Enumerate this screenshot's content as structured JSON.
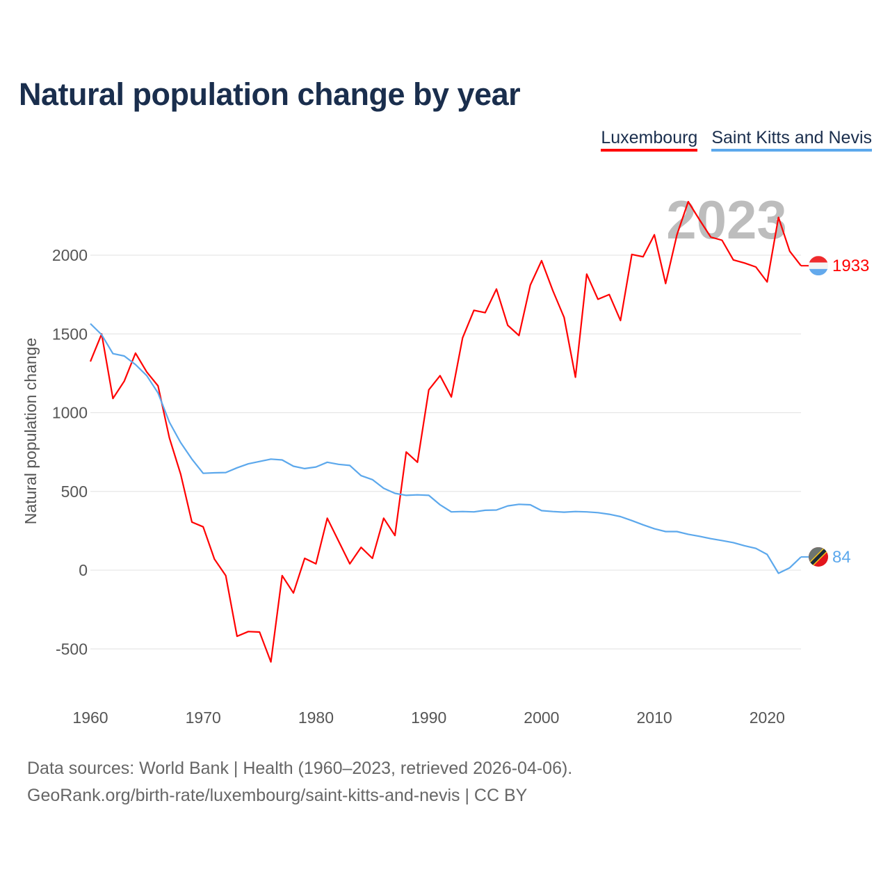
{
  "title": "Natural population change by year",
  "legend": [
    {
      "label": "Luxembourg",
      "color": "#ff0000"
    },
    {
      "label": "Saint Kitts and Nevis",
      "color": "#5ca8ec"
    }
  ],
  "footer": {
    "line1": "Data sources: World Bank | Health (1960–2023, retrieved 2026-04-06).",
    "line2": "GeoRank.org/birth-rate/luxembourg/saint-kitts-and-nevis | CC BY"
  },
  "chart_data": {
    "type": "line",
    "title": "Natural population change by year",
    "xlabel": "",
    "ylabel": "Natural population change",
    "year_label": "2023",
    "xlim": [
      1960,
      2023
    ],
    "ylim": [
      -750,
      2450
    ],
    "x_ticks": [
      1960,
      1970,
      1980,
      1990,
      2000,
      2010,
      2020
    ],
    "y_ticks": [
      -500,
      0,
      500,
      1000,
      1500,
      2000
    ],
    "grid": true,
    "legend_position": "top-right",
    "x": [
      1960,
      1961,
      1962,
      1963,
      1964,
      1965,
      1966,
      1967,
      1968,
      1969,
      1970,
      1971,
      1972,
      1973,
      1974,
      1975,
      1976,
      1977,
      1978,
      1979,
      1980,
      1981,
      1982,
      1983,
      1984,
      1985,
      1986,
      1987,
      1988,
      1989,
      1990,
      1991,
      1992,
      1993,
      1994,
      1995,
      1996,
      1997,
      1998,
      1999,
      2000,
      2001,
      2002,
      2003,
      2004,
      2005,
      2006,
      2007,
      2008,
      2009,
      2010,
      2011,
      2012,
      2013,
      2014,
      2015,
      2016,
      2017,
      2018,
      2019,
      2020,
      2021,
      2022,
      2023
    ],
    "series": [
      {
        "name": "Luxembourg",
        "color": "#ff0000",
        "end_label": "1933",
        "values": [
          1325,
          1500,
          1090,
          1200,
          1378,
          1258,
          1170,
          840,
          610,
          305,
          275,
          70,
          -35,
          -420,
          -390,
          -393,
          -583,
          -35,
          -145,
          75,
          40,
          330,
          185,
          40,
          145,
          75,
          330,
          220,
          750,
          685,
          1145,
          1235,
          1100,
          1475,
          1650,
          1635,
          1785,
          1555,
          1490,
          1810,
          1965,
          1775,
          1605,
          1225,
          1880,
          1720,
          1750,
          1585,
          2005,
          1990,
          2130,
          1820,
          2130,
          2340,
          2225,
          2115,
          2095,
          1970,
          1950,
          1925,
          1830,
          2240,
          2025,
          1933
        ]
      },
      {
        "name": "Saint Kitts and Nevis",
        "color": "#5ca8ec",
        "end_label": "84",
        "values": [
          1565,
          1495,
          1375,
          1360,
          1305,
          1235,
          1125,
          940,
          810,
          705,
          615,
          618,
          620,
          650,
          675,
          690,
          705,
          700,
          660,
          645,
          655,
          685,
          672,
          665,
          600,
          575,
          520,
          488,
          475,
          478,
          475,
          415,
          370,
          372,
          370,
          380,
          382,
          408,
          418,
          415,
          378,
          372,
          368,
          372,
          370,
          365,
          355,
          340,
          315,
          288,
          263,
          245,
          245,
          228,
          215,
          200,
          188,
          175,
          155,
          138,
          100,
          -20,
          15,
          84
        ]
      }
    ]
  }
}
